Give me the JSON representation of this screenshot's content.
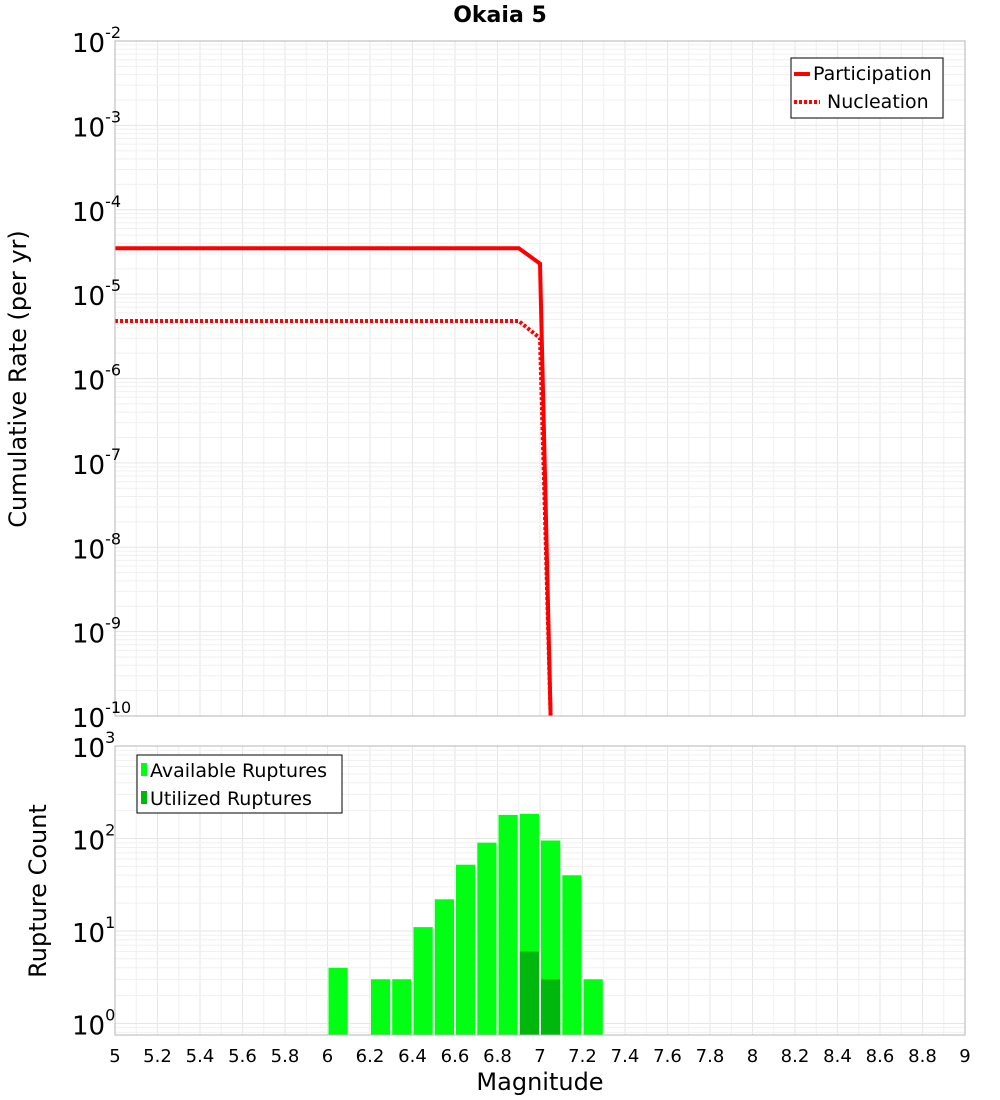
{
  "chart_data": [
    {
      "type": "line",
      "title": "Okaia 5",
      "xlabel": "",
      "ylabel": "Cumulative Rate (per yr)",
      "xlim": [
        5,
        9
      ],
      "ylim": [
        1e-10,
        0.01
      ],
      "yscale": "log",
      "y_ticks": [
        {
          "base": "10",
          "exp": "-10"
        },
        {
          "base": "10",
          "exp": "-9"
        },
        {
          "base": "10",
          "exp": "-8"
        },
        {
          "base": "10",
          "exp": "-7"
        },
        {
          "base": "10",
          "exp": "-6"
        },
        {
          "base": "10",
          "exp": "-5"
        },
        {
          "base": "10",
          "exp": "-4"
        },
        {
          "base": "10",
          "exp": "-3"
        },
        {
          "base": "10",
          "exp": "-2"
        }
      ],
      "grid": true,
      "legend_position": "top-right",
      "series": [
        {
          "name": "Participation",
          "color": "#ff0000",
          "style": "solid",
          "x": [
            5.0,
            6.9,
            7.0,
            7.05
          ],
          "y": [
            3.5e-05,
            3.5e-05,
            2.3e-05,
            1e-10
          ]
        },
        {
          "name": "Nucleation",
          "color": "#ff0000",
          "style": "dotted",
          "x": [
            5.0,
            6.9,
            7.0,
            7.05
          ],
          "y": [
            4.8e-06,
            4.8e-06,
            3e-06,
            1e-10
          ]
        }
      ]
    },
    {
      "type": "bar",
      "title": "",
      "xlabel": "Magnitude",
      "ylabel": "Rupture Count",
      "xlim": [
        5,
        9
      ],
      "ylim": [
        0.75,
        1000
      ],
      "yscale": "log",
      "x_ticks": [
        "5",
        "5.2",
        "5.4",
        "5.6",
        "5.8",
        "6",
        "6.2",
        "6.4",
        "6.6",
        "6.8",
        "7",
        "7.2",
        "7.4",
        "7.6",
        "7.8",
        "8",
        "8.2",
        "8.4",
        "8.6",
        "8.8",
        "9"
      ],
      "y_ticks": [
        {
          "base": "10",
          "exp": "0"
        },
        {
          "base": "10",
          "exp": "1"
        },
        {
          "base": "10",
          "exp": "2"
        },
        {
          "base": "10",
          "exp": "3"
        }
      ],
      "grid": true,
      "legend_position": "top-left",
      "bin_width": 0.1,
      "series": [
        {
          "name": "Available Ruptures",
          "color": "#00ff13",
          "x": [
            6.05,
            6.25,
            6.35,
            6.45,
            6.55,
            6.65,
            6.75,
            6.85,
            6.95,
            7.05,
            7.15,
            7.25
          ],
          "values": [
            4,
            3,
            3,
            11,
            22,
            52,
            90,
            180,
            185,
            95,
            40,
            3
          ]
        },
        {
          "name": "Utilized Ruptures",
          "color": "#00b80d",
          "x": [
            6.95,
            7.05
          ],
          "values": [
            6,
            3
          ]
        }
      ]
    }
  ]
}
